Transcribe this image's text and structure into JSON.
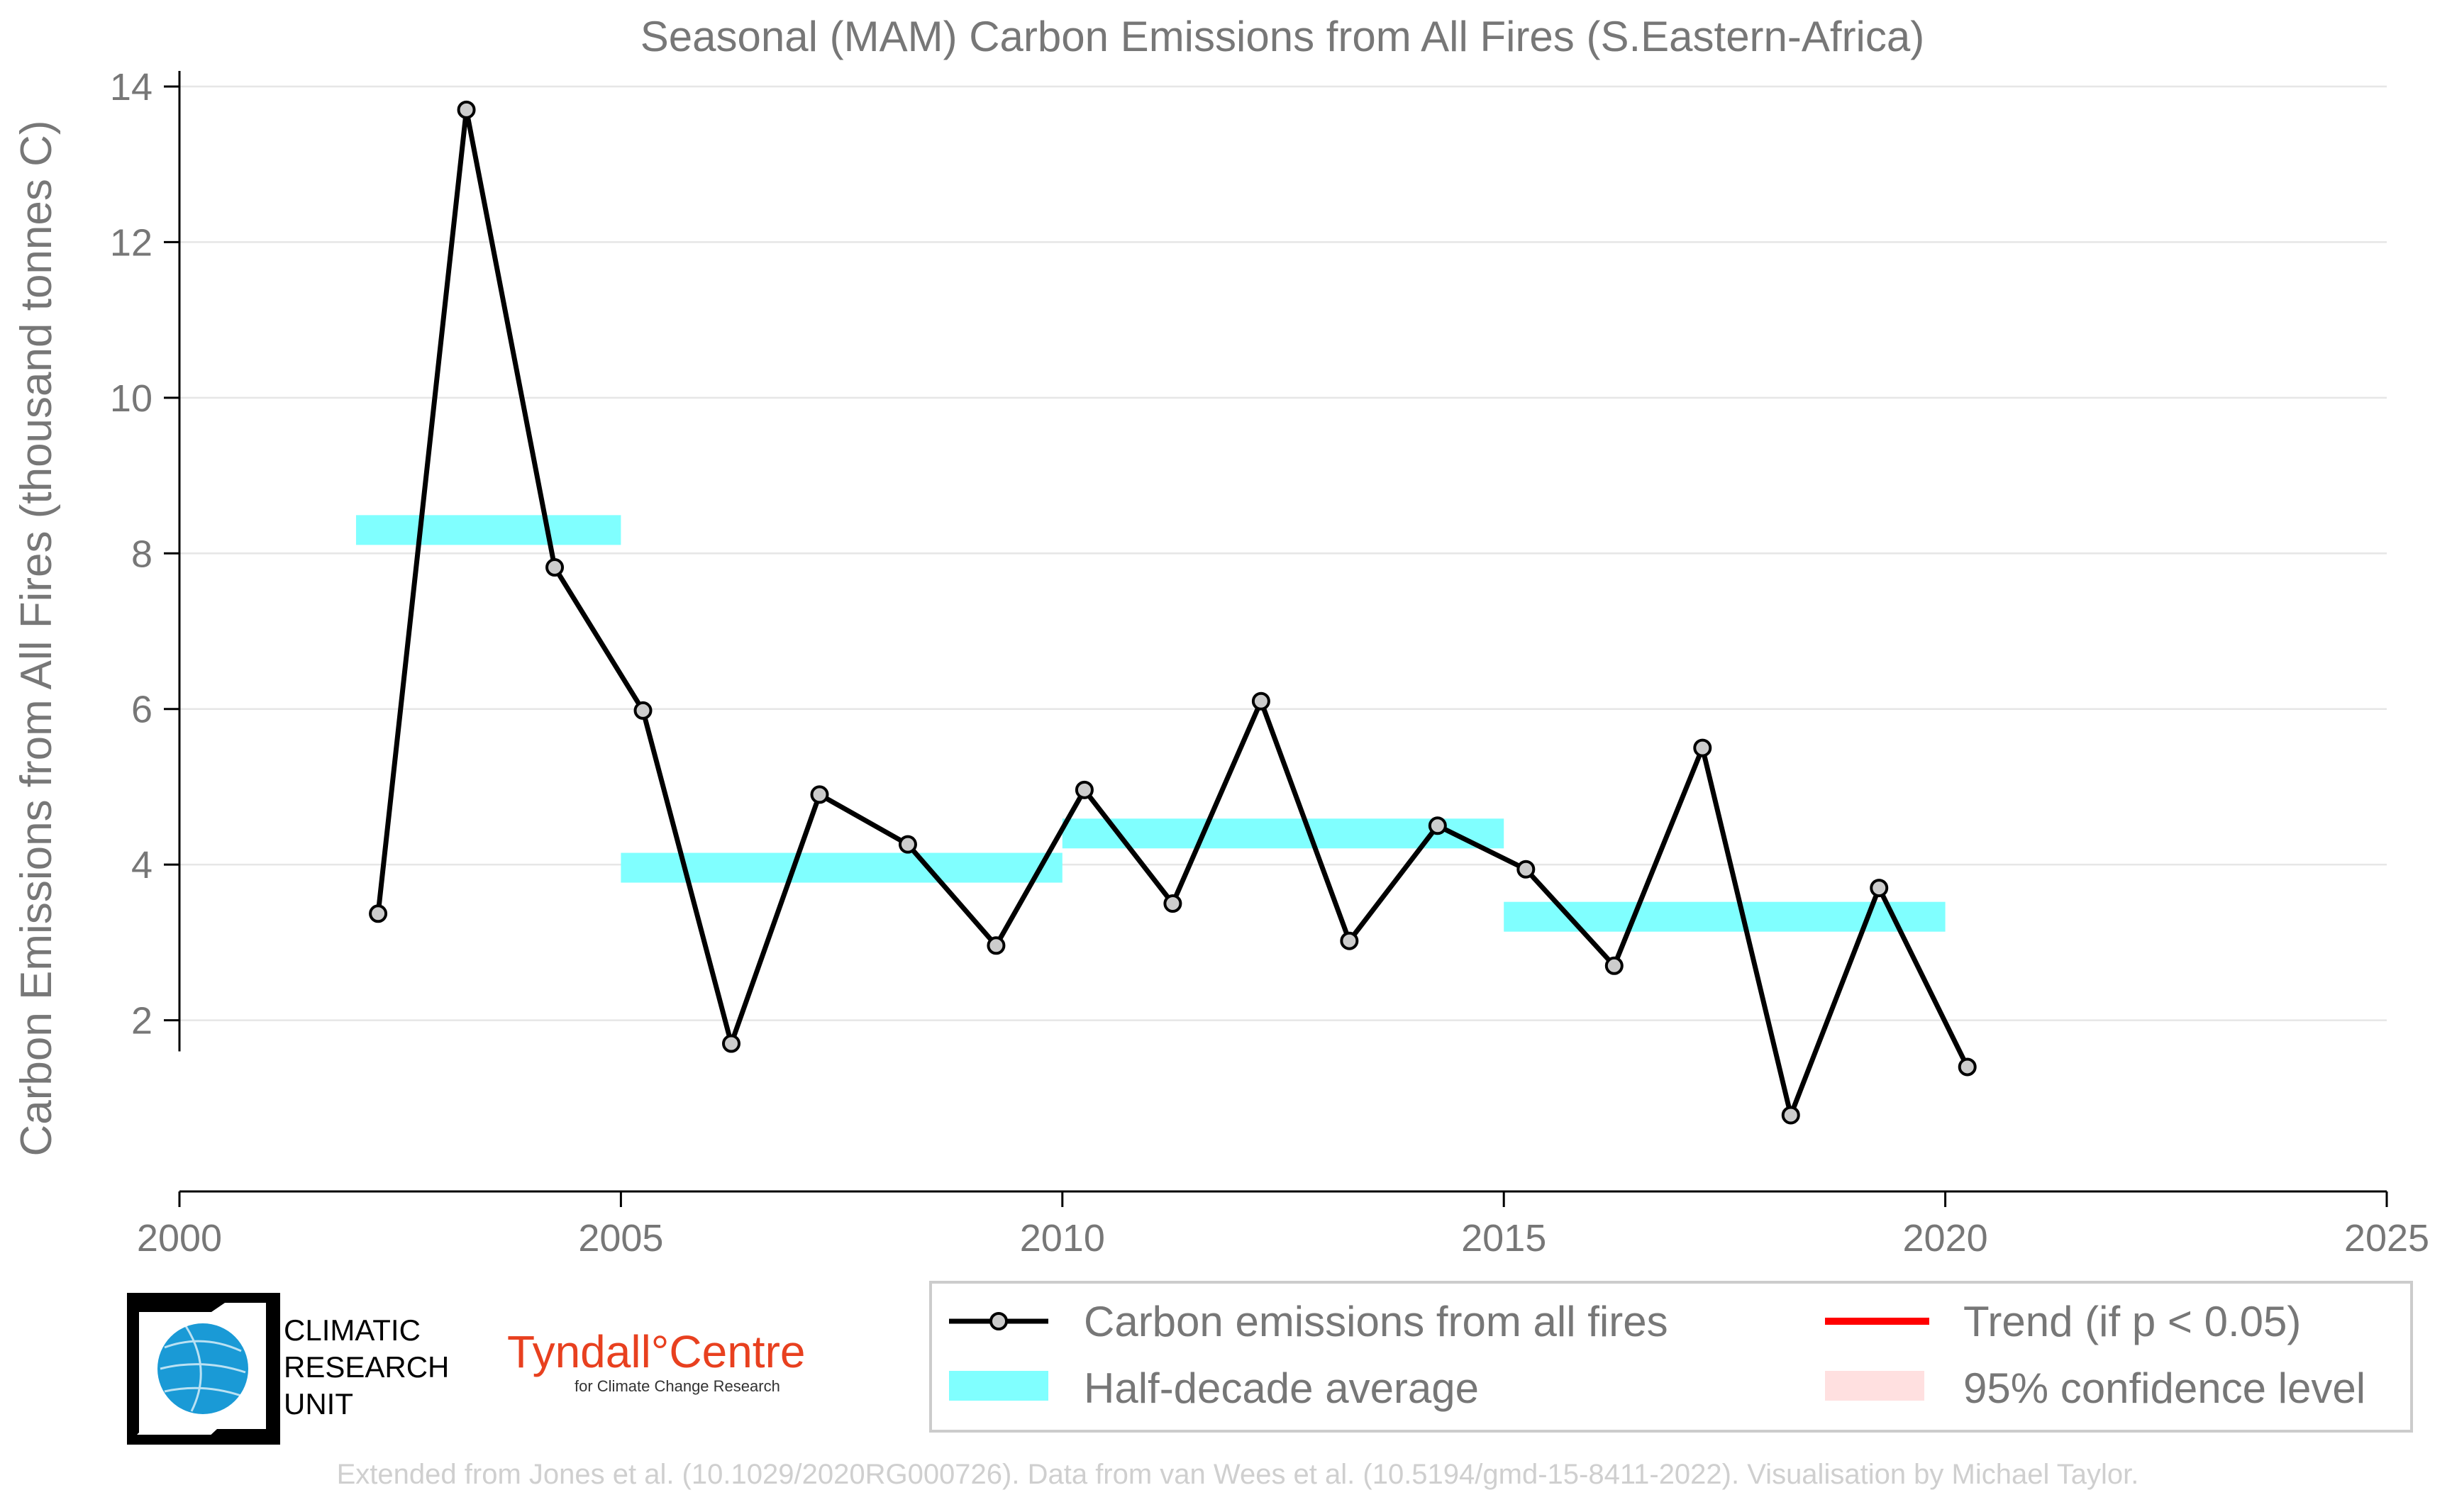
{
  "chart_data": {
    "type": "line",
    "title": "Seasonal (MAM) Carbon Emissions from All Fires (S.Eastern-Africa)",
    "xlabel": "",
    "ylabel": "Carbon Emissions from All Fires (thousand tonnes C)",
    "xlim": [
      2000,
      2025
    ],
    "ylim": [
      -0.2,
      14.2
    ],
    "x_ticks": [
      "2000",
      "2005",
      "2010",
      "2015",
      "2020",
      "2025"
    ],
    "y_ticks": [
      "2",
      "4",
      "6",
      "8",
      "10",
      "12",
      "14"
    ],
    "grid": "horizontal",
    "legend_position": "bottom",
    "series": [
      {
        "name": "Carbon emissions from all fires",
        "color": "#000000",
        "marker_color": "#cccccc",
        "x": [
          2002.25,
          2003.25,
          2004.25,
          2005.25,
          2006.25,
          2007.25,
          2008.25,
          2009.25,
          2010.25,
          2011.25,
          2012.25,
          2013.25,
          2014.25,
          2015.25,
          2016.25,
          2017.25,
          2018.25,
          2019.25,
          2020.25
        ],
        "values": [
          3.37,
          13.7,
          7.82,
          5.98,
          1.7,
          4.9,
          4.26,
          2.96,
          4.96,
          3.5,
          6.1,
          3.02,
          4.5,
          3.94,
          2.7,
          5.5,
          0.78,
          3.7,
          1.4
        ]
      },
      {
        "name": "Half-decade average",
        "color": "#80ffff",
        "segments": [
          {
            "x0": 2002,
            "x1": 2005,
            "value": 8.3
          },
          {
            "x0": 2005,
            "x1": 2010,
            "value": 3.96
          },
          {
            "x0": 2010,
            "x1": 2015,
            "value": 4.4
          },
          {
            "x0": 2015,
            "x1": 2020,
            "value": 3.33
          }
        ]
      }
    ],
    "legend": [
      {
        "label": "Carbon emissions from all fires",
        "symbol": "line-marker",
        "color": "#000000"
      },
      {
        "label": "Half-decade average",
        "symbol": "band",
        "color": "#80ffff"
      },
      {
        "label": "Trend (if p < 0.05)",
        "symbol": "line",
        "color": "#ff0000"
      },
      {
        "label": "95% confidence level",
        "symbol": "band",
        "color": "#ffe0e0"
      }
    ]
  },
  "logos": {
    "cru": [
      "CLIMATIC",
      "RESEARCH",
      "UNIT"
    ],
    "tyndall_main": "Tyndall°Centre",
    "tyndall_sub": "for Climate Change Research"
  },
  "footer": "Extended from Jones et al. (10.1029/2020RG000726). Data from van Wees et al. (10.5194/gmd-15-8411-2022). Visualisation by Michael Taylor."
}
